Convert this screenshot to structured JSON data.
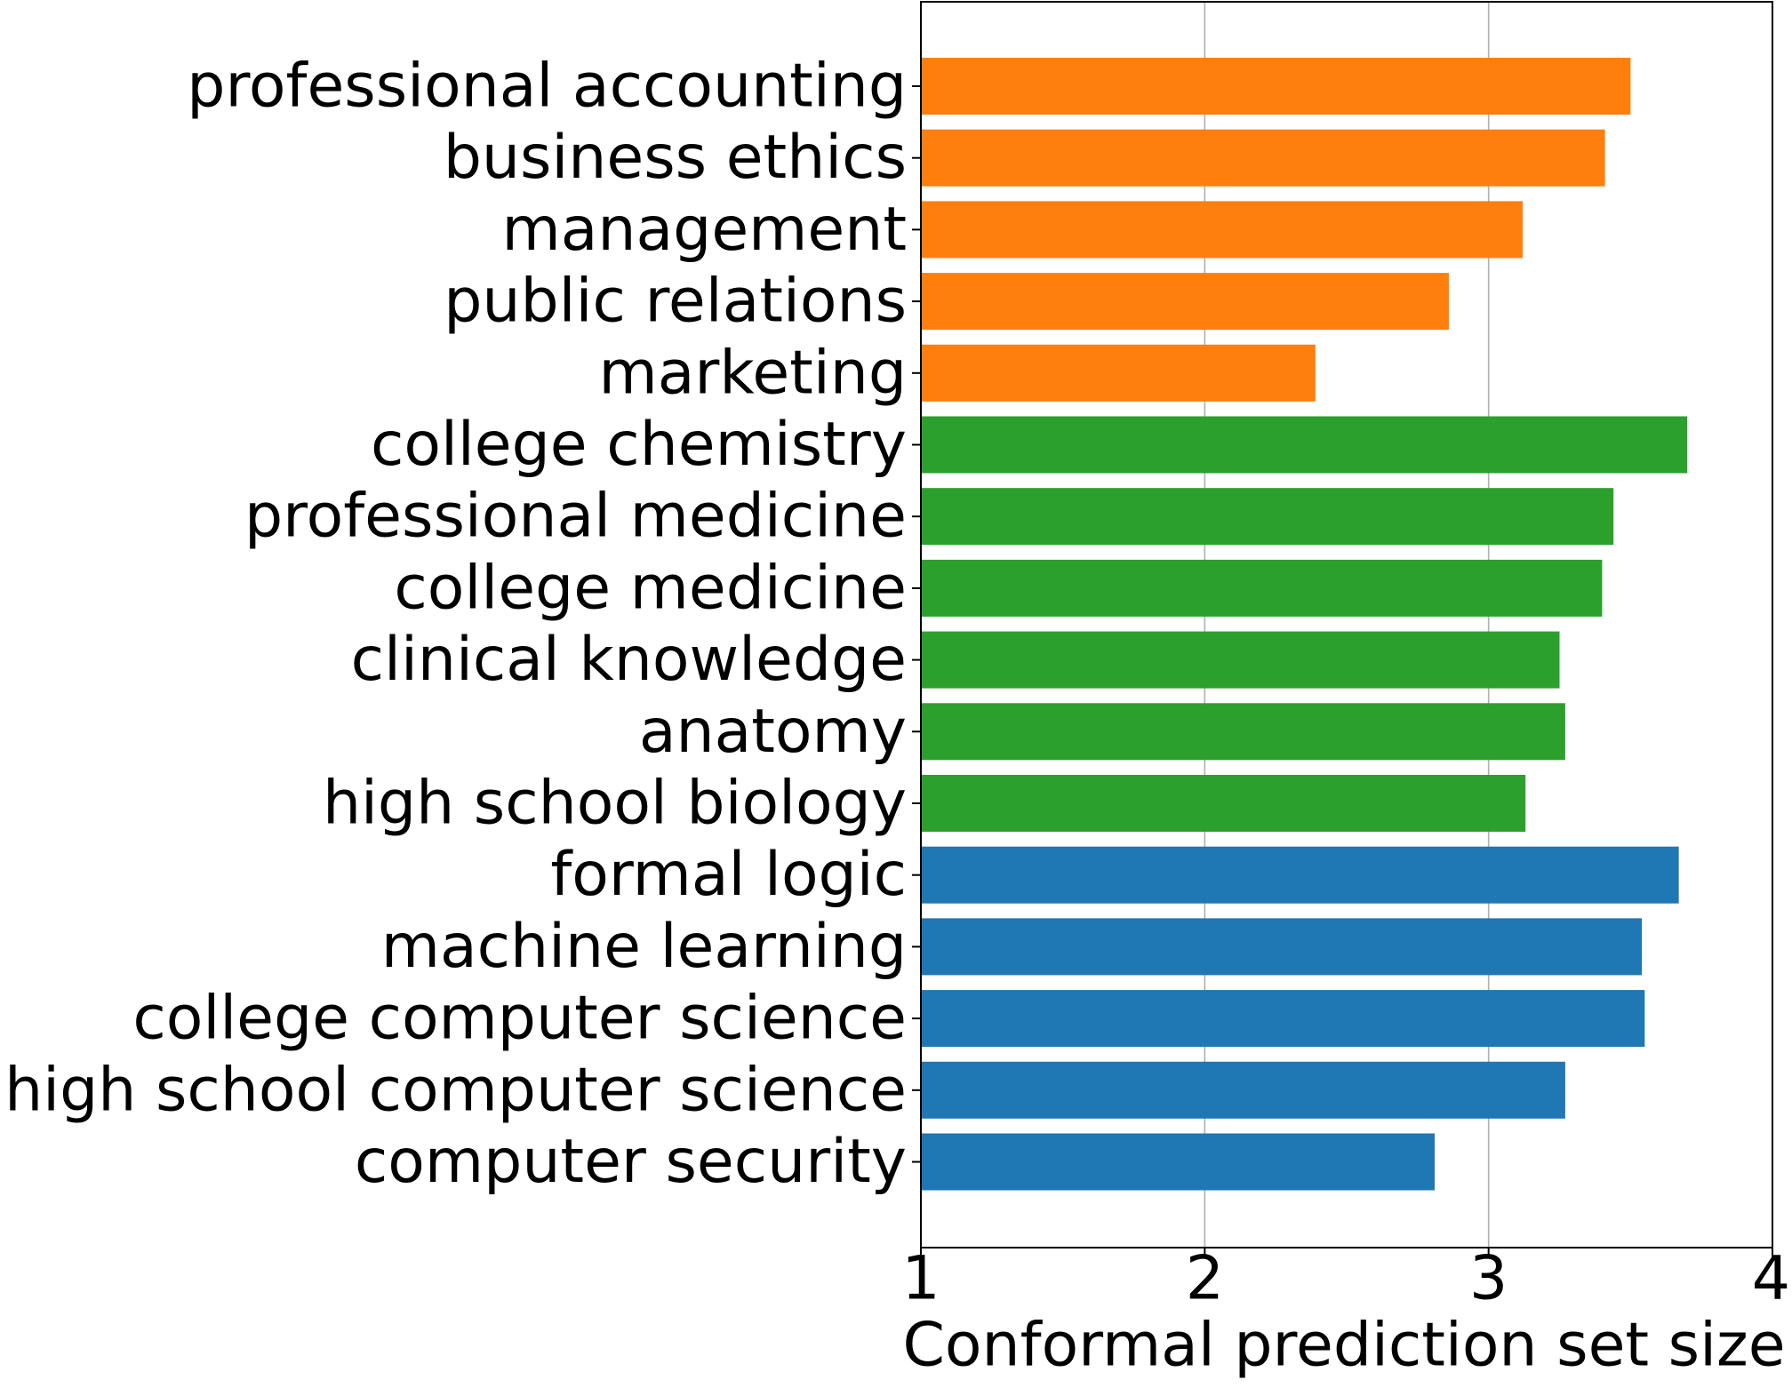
{
  "chart_data": {
    "type": "bar",
    "orientation": "horizontal",
    "categories": [
      "professional accounting",
      "business ethics",
      "management",
      "public relations",
      "marketing",
      "college chemistry",
      "professional medicine",
      "college medicine",
      "clinical knowledge",
      "anatomy",
      "high school biology",
      "formal logic",
      "machine learning",
      "college computer science",
      "high school computer science",
      "computer security"
    ],
    "values": [
      3.5,
      3.41,
      3.12,
      2.86,
      2.39,
      3.7,
      3.44,
      3.4,
      3.25,
      3.27,
      3.13,
      3.67,
      3.54,
      3.55,
      3.27,
      2.81
    ],
    "colors": [
      "#ff7f0e",
      "#ff7f0e",
      "#ff7f0e",
      "#ff7f0e",
      "#ff7f0e",
      "#2ca02c",
      "#2ca02c",
      "#2ca02c",
      "#2ca02c",
      "#2ca02c",
      "#2ca02c",
      "#1f77b4",
      "#1f77b4",
      "#1f77b4",
      "#1f77b4",
      "#1f77b4"
    ],
    "xlabel": "Conformal prediction set size",
    "xlim": [
      1,
      4
    ],
    "xticks": [
      "1",
      "2",
      "3",
      "4"
    ],
    "grid": "vertical",
    "grid_color": "#b0b0b0",
    "title": ""
  }
}
